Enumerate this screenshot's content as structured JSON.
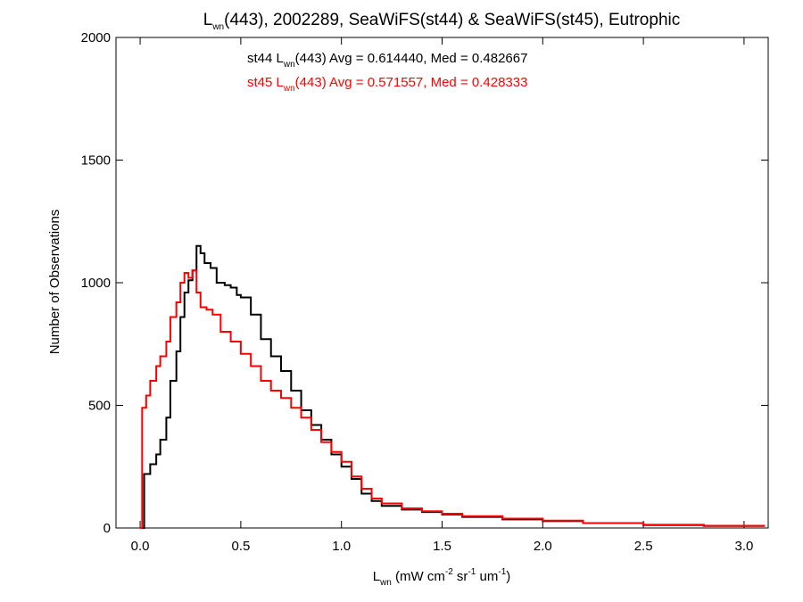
{
  "chart_data": {
    "type": "histogram-step",
    "title": {
      "main": "L",
      "main_sub": "wn",
      "rest": "(443), 2002289, SeaWiFS(st44) & SeaWiFS(st45), Eutrophic"
    },
    "xlabel": {
      "main": "L",
      "main_sub": "wn",
      "p1": " (mW cm",
      "sup1": "-2",
      "p2": " sr",
      "sup2": "-1",
      "p3": " um",
      "sup3": "-1",
      "p4": ")"
    },
    "ylabel": "Number of Observations",
    "xlim": [
      -0.12,
      3.12
    ],
    "ylim": [
      0,
      2000
    ],
    "xticks": [
      0.0,
      0.5,
      1.0,
      1.5,
      2.0,
      2.5,
      3.0
    ],
    "xtick_labels": [
      "0.0",
      "0.5",
      "1.0",
      "1.5",
      "2.0",
      "2.5",
      "3.0"
    ],
    "yticks": [
      0,
      500,
      1000,
      1500,
      2000
    ],
    "ytick_labels": [
      "0",
      "500",
      "1000",
      "1500",
      "2000"
    ],
    "series": [
      {
        "label_pre": "st44 L",
        "label_sub": "wn",
        "label_post": "(443) Avg = 0.614440, Med = 0.482667",
        "color": "#000000",
        "x": [
          0.0,
          0.02,
          0.05,
          0.08,
          0.1,
          0.13,
          0.15,
          0.18,
          0.2,
          0.22,
          0.24,
          0.26,
          0.28,
          0.3,
          0.32,
          0.35,
          0.38,
          0.4,
          0.42,
          0.45,
          0.48,
          0.5,
          0.55,
          0.6,
          0.65,
          0.7,
          0.75,
          0.8,
          0.85,
          0.9,
          0.95,
          1.0,
          1.05,
          1.1,
          1.15,
          1.2,
          1.3,
          1.4,
          1.5,
          1.6,
          1.8,
          2.0,
          2.2,
          2.5,
          2.8,
          3.1
        ],
        "y": [
          0,
          220,
          260,
          300,
          360,
          450,
          600,
          720,
          860,
          960,
          1010,
          1050,
          1150,
          1120,
          1080,
          1060,
          1000,
          1000,
          990,
          980,
          950,
          940,
          870,
          770,
          700,
          640,
          560,
          480,
          420,
          360,
          300,
          250,
          200,
          140,
          110,
          90,
          75,
          65,
          55,
          45,
          35,
          28,
          20,
          12,
          8,
          5
        ]
      },
      {
        "label_pre": "st45 L",
        "label_sub": "wn",
        "label_post": "(443) Avg = 0.571557, Med = 0.428333",
        "color": "#ff0000",
        "x": [
          0.0,
          0.01,
          0.03,
          0.05,
          0.08,
          0.1,
          0.13,
          0.15,
          0.18,
          0.2,
          0.22,
          0.24,
          0.26,
          0.28,
          0.3,
          0.33,
          0.36,
          0.4,
          0.45,
          0.5,
          0.55,
          0.6,
          0.65,
          0.7,
          0.75,
          0.8,
          0.85,
          0.9,
          0.95,
          1.0,
          1.05,
          1.1,
          1.15,
          1.2,
          1.3,
          1.4,
          1.5,
          1.6,
          1.8,
          2.0,
          2.2,
          2.5,
          2.8,
          3.1
        ],
        "y": [
          0,
          490,
          540,
          600,
          660,
          700,
          760,
          860,
          920,
          1000,
          1040,
          1020,
          1050,
          960,
          900,
          890,
          870,
          800,
          760,
          710,
          660,
          600,
          560,
          530,
          490,
          450,
          400,
          350,
          310,
          270,
          210,
          160,
          120,
          100,
          80,
          68,
          58,
          48,
          38,
          30,
          20,
          13,
          9,
          6
        ]
      }
    ]
  }
}
